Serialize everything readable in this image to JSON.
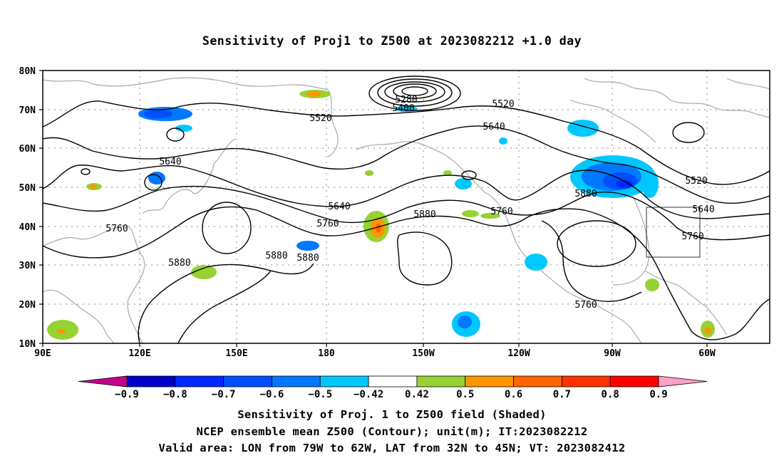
{
  "title": "Sensitivity of Proj1 to Z500 at 2023082212 +1.0 day",
  "lat_labels": [
    "80N",
    "70N",
    "60N",
    "50N",
    "40N",
    "30N",
    "20N",
    "10N"
  ],
  "lon_labels": [
    "90E",
    "120E",
    "150E",
    "180",
    "150W",
    "120W",
    "90W",
    "60W"
  ],
  "contour_labels": [
    {
      "text": "5280"
    },
    {
      "text": "5400"
    },
    {
      "text": "5520"
    },
    {
      "text": "5520"
    },
    {
      "text": "5640"
    },
    {
      "text": "5640"
    },
    {
      "text": "5520"
    },
    {
      "text": "5640"
    },
    {
      "text": "5760"
    },
    {
      "text": "5880"
    },
    {
      "text": "5760"
    },
    {
      "text": "5880"
    },
    {
      "text": "5880"
    },
    {
      "text": "5760"
    },
    {
      "text": "5640"
    },
    {
      "text": "5760"
    },
    {
      "text": "5880"
    },
    {
      "text": "5880"
    },
    {
      "text": "5760"
    }
  ],
  "colorbar": {
    "labels": [
      "-0.9",
      "-0.8",
      "-0.7",
      "-0.6",
      "-0.5",
      "-0.42",
      "0.42",
      "0.5",
      "0.6",
      "0.7",
      "0.8",
      "0.9"
    ],
    "colors": [
      "#c4008c",
      "#0000c8",
      "#0028ff",
      "#0050ff",
      "#0078ff",
      "#00c8ff",
      "#ffffff",
      "#96d232",
      "#ff9600",
      "#ff6400",
      "#ff3200",
      "#ff0000",
      "#ffa0c8"
    ]
  },
  "valid_area": {
    "lon": "79W to 62W",
    "lat": "32N to 45N"
  },
  "captions": [
    "Sensitivity of Proj. 1 to Z500 field (Shaded)",
    "NCEP ensemble mean Z500 (Contour); unit(m); IT:2023082212",
    "Valid area: LON from 79W to 62W, LAT from 32N to 45N; VT: 2023082412"
  ]
}
